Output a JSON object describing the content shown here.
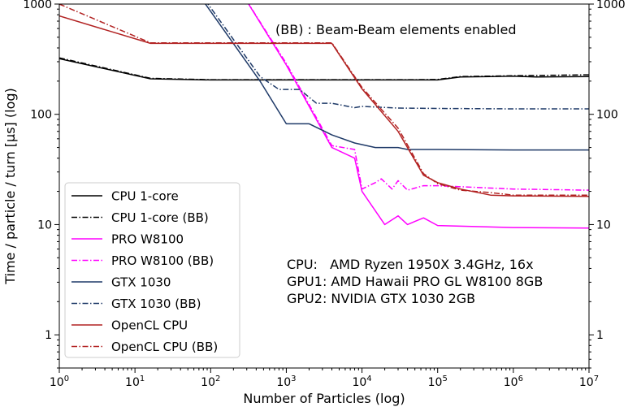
{
  "chart_data": {
    "type": "line",
    "xscale": "log",
    "yscale": "log",
    "xlim": [
      1,
      10000000
    ],
    "ylim": [
      0.5,
      1000
    ],
    "xlabel": "Number of Particles (log)",
    "ylabel": "Time / particle / turn [µs] (log)",
    "grid": false,
    "legend_position": "lower-left",
    "x_ticks": [
      {
        "value": 1,
        "base": "10",
        "exp": "0"
      },
      {
        "value": 10,
        "base": "10",
        "exp": "1"
      },
      {
        "value": 100,
        "base": "10",
        "exp": "2"
      },
      {
        "value": 1000,
        "base": "10",
        "exp": "3"
      },
      {
        "value": 10000,
        "base": "10",
        "exp": "4"
      },
      {
        "value": 100000,
        "base": "10",
        "exp": "5"
      },
      {
        "value": 1000000,
        "base": "10",
        "exp": "6"
      },
      {
        "value": 10000000,
        "base": "10",
        "exp": "7"
      }
    ],
    "y_ticks": [
      {
        "value": 1,
        "label": "1"
      },
      {
        "value": 10,
        "label": "10"
      },
      {
        "value": 100,
        "label": "100"
      },
      {
        "value": 1000,
        "label": "1000"
      }
    ],
    "annotations": {
      "top": "(BB) : Beam-Beam elements enabled",
      "hw_lines": [
        "CPU:   AMD Ryzen 1950X 3.4GHz, 16x",
        "GPU1: AMD Hawaii PRO GL W8100 8GB",
        "GPU2: NVIDIA GTX 1030 2GB"
      ]
    },
    "series": [
      {
        "name": "CPU 1-core",
        "color": "#000000",
        "dash": "solid",
        "points": [
          [
            1,
            320
          ],
          [
            16,
            210
          ],
          [
            100,
            205
          ],
          [
            1000,
            205
          ],
          [
            10000,
            205
          ],
          [
            50000,
            205
          ],
          [
            100000,
            205
          ],
          [
            200000,
            218
          ],
          [
            500000,
            220
          ],
          [
            1000000,
            222
          ],
          [
            2000000,
            218
          ],
          [
            10000000,
            220
          ]
        ]
      },
      {
        "name": "CPU 1-core (BB)",
        "color": "#000000",
        "dash": "dashdot",
        "points": [
          [
            1,
            325
          ],
          [
            16,
            212
          ],
          [
            100,
            206
          ],
          [
            1000,
            206
          ],
          [
            10000,
            206
          ],
          [
            50000,
            206
          ],
          [
            100000,
            207
          ],
          [
            200000,
            220
          ],
          [
            500000,
            222
          ],
          [
            1000000,
            224
          ],
          [
            2000000,
            225
          ],
          [
            10000000,
            228
          ]
        ]
      },
      {
        "name": "PRO W8100",
        "color": "#ff00ff",
        "dash": "solid",
        "points": [
          [
            250,
            1300
          ],
          [
            1000,
            280
          ],
          [
            4000,
            50
          ],
          [
            8000,
            40
          ],
          [
            10000,
            20
          ],
          [
            20000,
            10
          ],
          [
            30000,
            12
          ],
          [
            40000,
            10
          ],
          [
            65000,
            11.5
          ],
          [
            100000,
            9.8
          ],
          [
            1000000,
            9.4
          ],
          [
            10000000,
            9.3
          ]
        ]
      },
      {
        "name": "PRO W8100 (BB)",
        "color": "#ff00ff",
        "dash": "dashdot",
        "points": [
          [
            250,
            1300
          ],
          [
            1000,
            290
          ],
          [
            4000,
            52
          ],
          [
            8000,
            48
          ],
          [
            10000,
            21
          ],
          [
            15000,
            24
          ],
          [
            18000,
            26
          ],
          [
            25000,
            21
          ],
          [
            30000,
            25
          ],
          [
            40000,
            20.5
          ],
          [
            65000,
            22.5
          ],
          [
            100000,
            22.5
          ],
          [
            1000000,
            21
          ],
          [
            10000000,
            20.5
          ]
        ]
      },
      {
        "name": "GTX 1030",
        "color": "#1f3a68",
        "dash": "solid",
        "points": [
          [
            65,
            1300
          ],
          [
            450,
            200
          ],
          [
            1000,
            82
          ],
          [
            2000,
            82
          ],
          [
            4000,
            65
          ],
          [
            8000,
            55
          ],
          [
            15000,
            50
          ],
          [
            30000,
            50
          ],
          [
            40000,
            48
          ],
          [
            100000,
            48
          ],
          [
            1000000,
            47.5
          ],
          [
            10000000,
            47.5
          ]
        ]
      },
      {
        "name": "GTX 1030 (BB)",
        "color": "#1f3a68",
        "dash": "dashdot",
        "points": [
          [
            70,
            1300
          ],
          [
            450,
            220
          ],
          [
            800,
            168
          ],
          [
            1500,
            168
          ],
          [
            2500,
            126
          ],
          [
            4000,
            126
          ],
          [
            8000,
            115
          ],
          [
            10000,
            118
          ],
          [
            30000,
            114
          ],
          [
            100000,
            113
          ],
          [
            1000000,
            112
          ],
          [
            10000000,
            112
          ]
        ]
      },
      {
        "name": "OpenCL CPU",
        "color": "#b22222",
        "dash": "solid",
        "points": [
          [
            1,
            780
          ],
          [
            16,
            440
          ],
          [
            100,
            440
          ],
          [
            1000,
            440
          ],
          [
            4000,
            440
          ],
          [
            10000,
            170
          ],
          [
            30000,
            70
          ],
          [
            65000,
            28
          ],
          [
            100000,
            24
          ],
          [
            200000,
            21
          ],
          [
            500000,
            18.5
          ],
          [
            1000000,
            18.2
          ],
          [
            10000000,
            18
          ]
        ]
      },
      {
        "name": "OpenCL CPU (BB)",
        "color": "#b22222",
        "dash": "dashdot",
        "points": [
          [
            1,
            1000
          ],
          [
            16,
            445
          ],
          [
            100,
            445
          ],
          [
            1000,
            445
          ],
          [
            4000,
            445
          ],
          [
            10000,
            175
          ],
          [
            30000,
            75
          ],
          [
            65000,
            29
          ],
          [
            100000,
            23.5
          ],
          [
            200000,
            20.5
          ],
          [
            500000,
            19.5
          ],
          [
            1000000,
            18.5
          ],
          [
            10000000,
            18.5
          ]
        ]
      }
    ]
  }
}
